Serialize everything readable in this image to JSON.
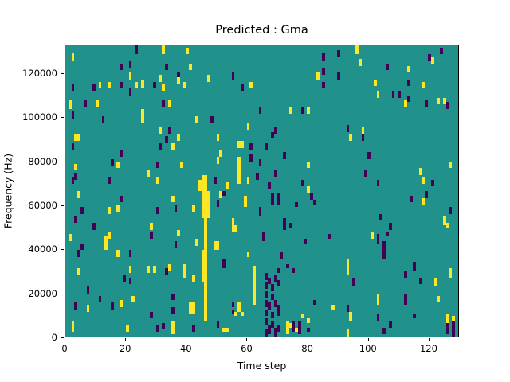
{
  "chart_data": {
    "type": "heatmap",
    "title": "Predicted : Gma",
    "xlabel": "Time step",
    "ylabel": "Frequency (Hz)",
    "x_ticks": [
      0,
      20,
      40,
      60,
      80,
      100,
      120
    ],
    "y_ticks": [
      0,
      20000,
      40000,
      60000,
      80000,
      100000,
      120000
    ],
    "x_range": [
      0,
      130
    ],
    "y_range": [
      0,
      133000
    ],
    "grid_cols": 130,
    "grid_rows": 128,
    "colormap": "viridis",
    "colors": {
      "background": "#21918c",
      "low": "#440154",
      "high": "#fde725"
    },
    "legend": {
      "y": "#fde725",
      "p": "#440154"
    },
    "cells": [
      [
        23,
        124,
        4,
        "p"
      ],
      [
        32,
        124,
        4,
        "y"
      ],
      [
        2,
        121,
        4,
        "y"
      ],
      [
        40,
        124,
        3,
        "y"
      ],
      [
        18,
        117,
        3,
        "p"
      ],
      [
        21,
        118,
        3,
        "p"
      ],
      [
        21,
        113,
        3,
        "y"
      ],
      [
        33,
        117,
        3,
        "p"
      ],
      [
        41,
        117,
        3,
        "y"
      ],
      [
        37,
        113,
        3,
        "p"
      ],
      [
        2,
        108,
        3,
        "p"
      ],
      [
        9,
        108,
        3,
        "p"
      ],
      [
        11,
        109,
        3,
        "y"
      ],
      [
        14,
        109,
        3,
        "y"
      ],
      [
        18,
        109,
        3,
        "p"
      ],
      [
        21,
        106,
        3,
        "p"
      ],
      [
        23,
        109,
        3,
        "y"
      ],
      [
        25,
        109,
        4,
        "y"
      ],
      [
        29,
        109,
        3,
        "p"
      ],
      [
        31,
        112,
        3,
        "y"
      ],
      [
        32,
        108,
        3,
        "y"
      ],
      [
        37,
        111,
        3,
        "y"
      ],
      [
        39,
        109,
        3,
        "y"
      ],
      [
        1,
        100,
        4,
        "y"
      ],
      [
        6,
        101,
        3,
        "p"
      ],
      [
        10,
        101,
        3,
        "y"
      ],
      [
        32,
        101,
        3,
        "p"
      ],
      [
        34,
        101,
        3,
        "y"
      ],
      [
        2,
        96,
        3,
        "p"
      ],
      [
        12,
        94,
        3,
        "p"
      ],
      [
        25,
        94,
        6,
        "y"
      ],
      [
        31,
        89,
        3,
        "y"
      ],
      [
        34,
        89,
        3,
        "p"
      ],
      [
        3,
        86,
        3,
        "y"
      ],
      [
        4,
        86,
        3,
        "y"
      ],
      [
        33,
        85,
        3,
        "p"
      ],
      [
        37,
        86,
        3,
        "y"
      ],
      [
        2,
        82,
        3,
        "p"
      ],
      [
        35,
        82,
        3,
        "y"
      ],
      [
        31,
        82,
        3,
        "p"
      ],
      [
        18,
        79,
        3,
        "p"
      ],
      [
        15,
        75,
        3,
        "p"
      ],
      [
        17,
        74,
        3,
        "y"
      ],
      [
        3,
        73,
        3,
        "y"
      ],
      [
        30,
        74,
        3,
        "p"
      ],
      [
        27,
        70,
        3,
        "y"
      ],
      [
        3,
        69,
        3,
        "p"
      ],
      [
        30,
        67,
        3,
        "y"
      ],
      [
        2,
        67,
        3,
        "p"
      ],
      [
        14,
        67,
        3,
        "p"
      ],
      [
        38,
        74,
        3,
        "y"
      ],
      [
        85,
        121,
        4,
        "p"
      ],
      [
        47,
        112,
        3,
        "y"
      ],
      [
        55,
        113,
        3,
        "p"
      ],
      [
        58,
        108,
        3,
        "p"
      ],
      [
        61,
        109,
        3,
        "y"
      ],
      [
        83,
        113,
        3,
        "y"
      ],
      [
        85,
        109,
        3,
        "p"
      ],
      [
        85,
        115,
        3,
        "p"
      ],
      [
        64,
        98,
        3,
        "p"
      ],
      [
        74,
        98,
        3,
        "y"
      ],
      [
        78,
        98,
        3,
        "p"
      ],
      [
        80,
        98,
        3,
        "y"
      ],
      [
        43,
        94,
        3,
        "y"
      ],
      [
        48,
        94,
        3,
        "p"
      ],
      [
        60,
        91,
        3,
        "y"
      ],
      [
        69,
        89,
        3,
        "p"
      ],
      [
        50,
        86,
        3,
        "y"
      ],
      [
        68,
        87,
        3,
        "p"
      ],
      [
        57,
        83,
        3,
        "y"
      ],
      [
        58,
        83,
        3,
        "y"
      ],
      [
        61,
        82,
        3,
        "p"
      ],
      [
        66,
        82,
        3,
        "p"
      ],
      [
        51,
        79,
        3,
        "y"
      ],
      [
        50,
        76,
        3,
        "y"
      ],
      [
        57,
        67,
        12,
        "y"
      ],
      [
        61,
        77,
        3,
        "p"
      ],
      [
        72,
        78,
        3,
        "p"
      ],
      [
        64,
        75,
        3,
        "p"
      ],
      [
        80,
        74,
        3,
        "y"
      ],
      [
        69,
        70,
        3,
        "p"
      ],
      [
        63,
        69,
        3,
        "p"
      ],
      [
        44,
        64,
        5,
        "y"
      ],
      [
        45,
        64,
        7,
        "y"
      ],
      [
        46,
        64,
        7,
        "y"
      ],
      [
        49,
        67,
        3,
        "p"
      ],
      [
        53,
        65,
        3,
        "y"
      ],
      [
        60,
        67,
        3,
        "y"
      ],
      [
        67,
        65,
        3,
        "p"
      ],
      [
        78,
        66,
        3,
        "p"
      ],
      [
        80,
        63,
        3,
        "y"
      ],
      [
        96,
        124,
        4,
        "y"
      ],
      [
        124,
        124,
        3,
        "p"
      ],
      [
        120,
        121,
        3,
        "p"
      ],
      [
        121,
        120,
        3,
        "y"
      ],
      [
        97,
        119,
        3,
        "y"
      ],
      [
        90,
        123,
        3,
        "p"
      ],
      [
        106,
        117,
        3,
        "p"
      ],
      [
        113,
        116,
        3,
        "y"
      ],
      [
        90,
        113,
        3,
        "p"
      ],
      [
        102,
        110,
        3,
        "y"
      ],
      [
        103,
        105,
        3,
        "y"
      ],
      [
        108,
        105,
        3,
        "p"
      ],
      [
        110,
        105,
        3,
        "p"
      ],
      [
        113,
        110,
        3,
        "p"
      ],
      [
        118,
        109,
        3,
        "y"
      ],
      [
        113,
        103,
        3,
        "p"
      ],
      [
        112,
        101,
        3,
        "y"
      ],
      [
        119,
        101,
        3,
        "p"
      ],
      [
        123,
        102,
        3,
        "y"
      ],
      [
        125,
        102,
        3,
        "y"
      ],
      [
        126,
        100,
        3,
        "p"
      ],
      [
        93,
        90,
        3,
        "p"
      ],
      [
        98,
        89,
        3,
        "y"
      ],
      [
        94,
        86,
        3,
        "y"
      ],
      [
        98,
        86,
        3,
        "p"
      ],
      [
        100,
        78,
        3,
        "p"
      ],
      [
        127,
        74,
        3,
        "y"
      ],
      [
        99,
        70,
        3,
        "p"
      ],
      [
        117,
        71,
        3,
        "y"
      ],
      [
        118,
        67,
        3,
        "y"
      ],
      [
        103,
        66,
        3,
        "p"
      ],
      [
        121,
        66,
        3,
        "p"
      ],
      [
        4,
        61,
        3,
        "y"
      ],
      [
        35,
        59,
        3,
        "y"
      ],
      [
        18,
        59,
        3,
        "p"
      ],
      [
        5,
        54,
        3,
        "p"
      ],
      [
        14,
        54,
        3,
        "y"
      ],
      [
        17,
        55,
        3,
        "y"
      ],
      [
        30,
        54,
        3,
        "p"
      ],
      [
        36,
        55,
        3,
        "p"
      ],
      [
        42,
        55,
        3,
        "y"
      ],
      [
        3,
        50,
        3,
        "p"
      ],
      [
        9,
        47,
        3,
        "p"
      ],
      [
        28,
        47,
        3,
        "y"
      ],
      [
        1,
        42,
        3,
        "y"
      ],
      [
        14,
        43,
        3,
        "y"
      ],
      [
        28,
        43,
        3,
        "p"
      ],
      [
        37,
        44,
        3,
        "y"
      ],
      [
        5,
        38,
        3,
        "p"
      ],
      [
        13,
        38,
        6,
        "y"
      ],
      [
        36,
        39,
        3,
        "p"
      ],
      [
        4,
        35,
        3,
        "p"
      ],
      [
        17,
        35,
        3,
        "y"
      ],
      [
        21,
        35,
        3,
        "p"
      ],
      [
        43,
        40,
        3,
        "y"
      ],
      [
        4,
        27,
        3,
        "y"
      ],
      [
        21,
        28,
        3,
        "y"
      ],
      [
        21,
        23,
        3,
        "p"
      ],
      [
        27,
        28,
        3,
        "y"
      ],
      [
        29,
        28,
        3,
        "y"
      ],
      [
        33,
        27,
        3,
        "p"
      ],
      [
        34,
        29,
        3,
        "y"
      ],
      [
        19,
        24,
        3,
        "p"
      ],
      [
        39,
        29,
        3,
        "y"
      ],
      [
        39,
        26,
        3,
        "y"
      ],
      [
        42,
        24,
        3,
        "y"
      ],
      [
        7,
        19,
        3,
        "p"
      ],
      [
        11,
        15,
        3,
        "p"
      ],
      [
        18,
        13,
        3,
        "y"
      ],
      [
        15,
        12,
        3,
        "p"
      ],
      [
        3,
        12,
        3,
        "p"
      ],
      [
        7,
        11,
        3,
        "y"
      ],
      [
        22,
        15,
        3,
        "y"
      ],
      [
        35,
        16,
        3,
        "p"
      ],
      [
        35,
        10,
        3,
        "p"
      ],
      [
        28,
        8,
        3,
        "p"
      ],
      [
        2,
        2,
        5,
        "y"
      ],
      [
        20,
        2,
        3,
        "y"
      ],
      [
        30,
        2,
        3,
        "p"
      ],
      [
        35,
        1,
        6,
        "y"
      ],
      [
        32,
        3,
        3,
        "p"
      ],
      [
        42,
        2,
        3,
        "p"
      ],
      [
        41,
        10,
        5,
        "y"
      ],
      [
        42,
        10,
        5,
        "y"
      ],
      [
        45,
        52,
        12,
        "y"
      ],
      [
        46,
        52,
        12,
        "y"
      ],
      [
        47,
        52,
        12,
        "y"
      ],
      [
        46,
        38,
        14,
        "y"
      ],
      [
        45,
        24,
        14,
        "y"
      ],
      [
        46,
        24,
        14,
        "y"
      ],
      [
        46,
        7,
        17,
        "y"
      ],
      [
        51,
        61,
        3,
        "y"
      ],
      [
        50,
        57,
        3,
        "p"
      ],
      [
        59,
        57,
        5,
        "y"
      ],
      [
        52,
        62,
        2,
        "p"
      ],
      [
        68,
        58,
        5,
        "p"
      ],
      [
        70,
        58,
        5,
        "p"
      ],
      [
        81,
        60,
        3,
        "p"
      ],
      [
        64,
        53,
        4,
        "p"
      ],
      [
        76,
        57,
        2,
        "p"
      ],
      [
        82,
        58,
        2,
        "p"
      ],
      [
        55,
        49,
        3,
        "y"
      ],
      [
        55,
        46,
        3,
        "y"
      ],
      [
        56,
        46,
        3,
        "y"
      ],
      [
        72,
        47,
        5,
        "p"
      ],
      [
        74,
        48,
        2,
        "p"
      ],
      [
        65,
        42,
        4,
        "p"
      ],
      [
        87,
        43,
        2,
        "p"
      ],
      [
        49,
        38,
        4,
        "y"
      ],
      [
        50,
        38,
        4,
        "y"
      ],
      [
        79,
        41,
        2,
        "p"
      ],
      [
        60,
        35,
        2,
        "y"
      ],
      [
        52,
        30,
        4,
        "p"
      ],
      [
        71,
        34,
        3,
        "p"
      ],
      [
        73,
        30,
        2,
        "p"
      ],
      [
        75,
        28,
        2,
        "p"
      ],
      [
        62,
        14,
        17,
        "y"
      ],
      [
        70,
        28,
        2,
        "p"
      ],
      [
        66,
        25,
        3,
        "p"
      ],
      [
        67,
        23,
        3,
        "p"
      ],
      [
        69,
        24,
        3,
        "p"
      ],
      [
        66,
        21,
        3,
        "p"
      ],
      [
        68,
        20,
        3,
        "p"
      ],
      [
        70,
        22,
        3,
        "p"
      ],
      [
        66,
        17,
        3,
        "p"
      ],
      [
        68,
        16,
        3,
        "p"
      ],
      [
        66,
        13,
        3,
        "p"
      ],
      [
        67,
        12,
        3,
        "p"
      ],
      [
        69,
        13,
        3,
        "p"
      ],
      [
        70,
        11,
        3,
        "p"
      ],
      [
        66,
        9,
        3,
        "p"
      ],
      [
        68,
        8,
        3,
        "p"
      ],
      [
        70,
        9,
        3,
        "p"
      ],
      [
        66,
        5,
        3,
        "p"
      ],
      [
        68,
        4,
        3,
        "p"
      ],
      [
        67,
        1,
        4,
        "p"
      ],
      [
        69,
        0,
        4,
        "p"
      ],
      [
        70,
        2,
        3,
        "p"
      ],
      [
        66,
        0,
        3,
        "p"
      ],
      [
        57,
        11,
        4,
        "y"
      ],
      [
        58,
        9,
        2,
        "y"
      ],
      [
        55,
        13,
        2,
        "p"
      ],
      [
        55,
        10,
        2,
        "p"
      ],
      [
        56,
        9,
        2,
        "y"
      ],
      [
        50,
        4,
        3,
        "p"
      ],
      [
        52,
        2,
        2,
        "y"
      ],
      [
        53,
        2,
        2,
        "y"
      ],
      [
        73,
        1,
        6,
        "y"
      ],
      [
        74,
        4,
        2,
        "y"
      ],
      [
        75,
        2,
        5,
        "p"
      ],
      [
        76,
        2,
        2,
        "y"
      ],
      [
        77,
        1,
        6,
        "p"
      ],
      [
        78,
        8,
        2,
        "y"
      ],
      [
        80,
        2,
        2,
        "p"
      ],
      [
        80,
        6,
        2,
        "y"
      ],
      [
        82,
        14,
        2,
        "p"
      ],
      [
        88,
        12,
        2,
        "y"
      ],
      [
        119,
        61,
        3,
        "p"
      ],
      [
        114,
        59,
        3,
        "p"
      ],
      [
        118,
        58,
        3,
        "y"
      ],
      [
        127,
        54,
        3,
        "p"
      ],
      [
        125,
        49,
        4,
        "y"
      ],
      [
        126,
        48,
        2,
        "y"
      ],
      [
        104,
        51,
        3,
        "p"
      ],
      [
        107,
        47,
        3,
        "p"
      ],
      [
        101,
        43,
        3,
        "y"
      ],
      [
        103,
        41,
        4,
        "p"
      ],
      [
        106,
        44,
        2,
        "p"
      ],
      [
        105,
        34,
        8,
        "p"
      ],
      [
        93,
        27,
        7,
        "y"
      ],
      [
        115,
        29,
        4,
        "p"
      ],
      [
        127,
        26,
        4,
        "y"
      ],
      [
        112,
        26,
        3,
        "p"
      ],
      [
        95,
        22,
        4,
        "p"
      ],
      [
        117,
        23,
        3,
        "p"
      ],
      [
        122,
        22,
        4,
        "y"
      ],
      [
        103,
        14,
        5,
        "y"
      ],
      [
        112,
        14,
        5,
        "p"
      ],
      [
        123,
        15,
        3,
        "y"
      ],
      [
        93,
        11,
        3,
        "p"
      ],
      [
        94,
        7,
        4,
        "y"
      ],
      [
        103,
        7,
        3,
        "p"
      ],
      [
        115,
        8,
        2,
        "p"
      ],
      [
        126,
        6,
        4,
        "y"
      ],
      [
        107,
        4,
        3,
        "p"
      ],
      [
        105,
        1,
        3,
        "p"
      ],
      [
        93,
        0,
        3,
        "y"
      ],
      [
        126,
        1,
        5,
        "p"
      ],
      [
        128,
        0,
        7,
        "p"
      ],
      [
        128,
        7,
        2,
        "y"
      ]
    ]
  }
}
